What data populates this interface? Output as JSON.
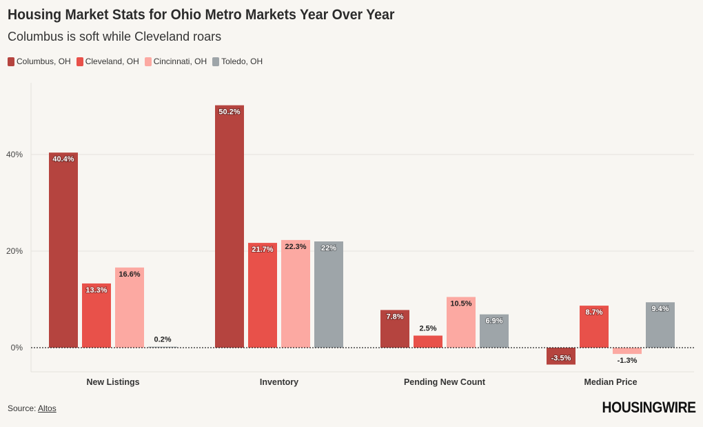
{
  "title": "Housing Market Stats for Ohio Metro Markets Year Over Year",
  "subtitle": "Columbus is soft while Cleveland roars",
  "source_label": "Source:",
  "source_link": "Altos",
  "logo_text": "HOUSINGWIRE",
  "colors": {
    "columbus": "#b5443f",
    "cleveland": "#e8514a",
    "cincinnati": "#fca9a2",
    "toledo": "#9ea5a9"
  },
  "legend": [
    {
      "label": "Columbus, OH",
      "color": "#b5443f"
    },
    {
      "label": "Cleveland, OH",
      "color": "#e8514a"
    },
    {
      "label": "Cincinnati, OH",
      "color": "#fca9a2"
    },
    {
      "label": "Toledo, OH",
      "color": "#9ea5a9"
    }
  ],
  "chart_data": {
    "type": "bar",
    "title": "Housing Market Stats for Ohio Metro Markets Year Over Year",
    "subtitle": "Columbus is soft while Cleveland roars",
    "categories": [
      "New Listings",
      "Inventory",
      "Pending New Count",
      "Median Price"
    ],
    "series": [
      {
        "name": "Columbus, OH",
        "values": [
          40.4,
          50.2,
          7.8,
          -3.5
        ],
        "labels": [
          "40.4%",
          "50.2%",
          "7.8%",
          "-3.5%"
        ]
      },
      {
        "name": "Cleveland, OH",
        "values": [
          13.3,
          21.7,
          2.5,
          8.7
        ],
        "labels": [
          "13.3%",
          "21.7%",
          "2.5%",
          "8.7%"
        ]
      },
      {
        "name": "Cincinnati, OH",
        "values": [
          16.6,
          22.3,
          10.5,
          -1.3
        ],
        "labels": [
          "16.6%",
          "22.3%",
          "10.5%",
          "-1.3%"
        ]
      },
      {
        "name": "Toledo, OH",
        "values": [
          0.2,
          22,
          6.9,
          9.4
        ],
        "labels": [
          "0.2%",
          "22%",
          "6.9%",
          "9.4%"
        ]
      }
    ],
    "y_ticks": [
      0,
      20,
      40
    ],
    "y_tick_labels": [
      "0%",
      "20%",
      "40%"
    ],
    "ylim": [
      -5,
      55
    ],
    "xlabel": "",
    "ylabel": "",
    "legend_position": "top-left",
    "grid": true
  }
}
